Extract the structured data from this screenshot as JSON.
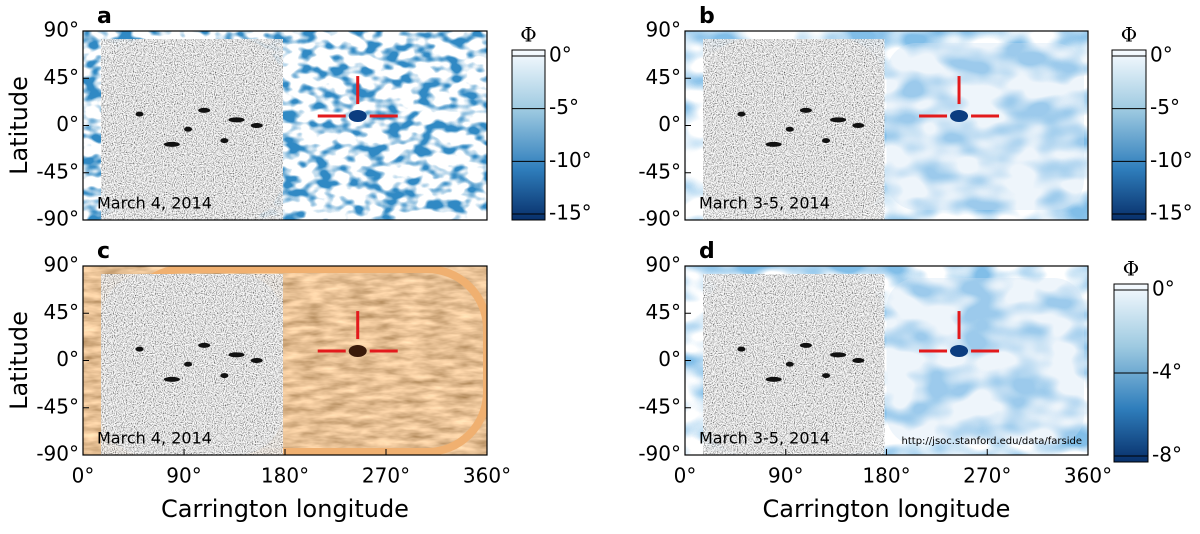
{
  "chart_data": [
    {
      "type": "map",
      "label": "a",
      "annotation": "March 4, 2014",
      "ylabel": "Latitude",
      "background": "farside-blue",
      "xlim": [
        0,
        360
      ],
      "ylim": [
        -90,
        90
      ],
      "yticks": [
        {
          "value": 90,
          "label": "90°"
        },
        {
          "value": 45,
          "label": "45°"
        },
        {
          "value": 0,
          "label": "0°"
        },
        {
          "value": -45,
          "label": "-45°"
        },
        {
          "value": -90,
          "label": "-90°"
        }
      ],
      "colorbar": {
        "title": "Φ",
        "lim": [
          -15,
          0
        ],
        "ticks": [
          {
            "value": 0,
            "label": "0°"
          },
          {
            "value": -5,
            "label": "-5°"
          },
          {
            "value": -10,
            "label": "-10°"
          },
          {
            "value": -15,
            "label": "-15°"
          }
        ]
      }
    },
    {
      "type": "map",
      "label": "b",
      "annotation": "March 3-5, 2014",
      "background": "farside-smooth",
      "xlim": [
        0,
        360
      ],
      "ylim": [
        -90,
        90
      ],
      "yticks": [
        {
          "value": 90,
          "label": "90°"
        },
        {
          "value": 45,
          "label": "45°"
        },
        {
          "value": 0,
          "label": "0°"
        },
        {
          "value": -45,
          "label": "-45°"
        },
        {
          "value": -90,
          "label": "-90°"
        }
      ],
      "colorbar": {
        "title": "Φ",
        "lim": [
          -15,
          0
        ],
        "ticks": [
          {
            "value": 0,
            "label": "0°"
          },
          {
            "value": -5,
            "label": "-5°"
          },
          {
            "value": -10,
            "label": "-10°"
          },
          {
            "value": -15,
            "label": "-15°"
          }
        ]
      }
    },
    {
      "type": "map",
      "label": "c",
      "annotation": "March 4, 2014",
      "ylabel": "Latitude",
      "xlabel": "Carrington longitude",
      "background": "euv-orange",
      "xlim": [
        0,
        360
      ],
      "ylim": [
        -90,
        90
      ],
      "xticks": [
        {
          "value": 0,
          "label": "0°"
        },
        {
          "value": 90,
          "label": "90°"
        },
        {
          "value": 180,
          "label": "180°"
        },
        {
          "value": 270,
          "label": "270°"
        },
        {
          "value": 360,
          "label": "360°"
        }
      ],
      "yticks": [
        {
          "value": 90,
          "label": "90°"
        },
        {
          "value": 45,
          "label": "45°"
        },
        {
          "value": 0,
          "label": "0°"
        },
        {
          "value": -45,
          "label": "-45°"
        },
        {
          "value": -90,
          "label": "-90°"
        }
      ]
    },
    {
      "type": "map",
      "label": "d",
      "annotation": "March 3-5, 2014",
      "note": "http://jsoc.stanford.edu/data/farside",
      "xlabel": "Carrington longitude",
      "background": "farside-smooth",
      "xlim": [
        0,
        360
      ],
      "ylim": [
        -90,
        90
      ],
      "xticks": [
        {
          "value": 0,
          "label": "0°"
        },
        {
          "value": 90,
          "label": "90°"
        },
        {
          "value": 180,
          "label": "180°"
        },
        {
          "value": 270,
          "label": "270°"
        },
        {
          "value": 360,
          "label": "360°"
        }
      ],
      "yticks": [
        {
          "value": 90,
          "label": "90°"
        },
        {
          "value": 45,
          "label": "45°"
        },
        {
          "value": 0,
          "label": "0°"
        },
        {
          "value": -45,
          "label": "-45°"
        },
        {
          "value": -90,
          "label": "-90°"
        }
      ],
      "colorbar": {
        "title": "Φ",
        "lim": [
          -8,
          0
        ],
        "ticks": [
          {
            "value": 0,
            "label": "0°"
          },
          {
            "value": -4,
            "label": "-4°"
          },
          {
            "value": -8,
            "label": "-8°"
          }
        ]
      }
    }
  ]
}
